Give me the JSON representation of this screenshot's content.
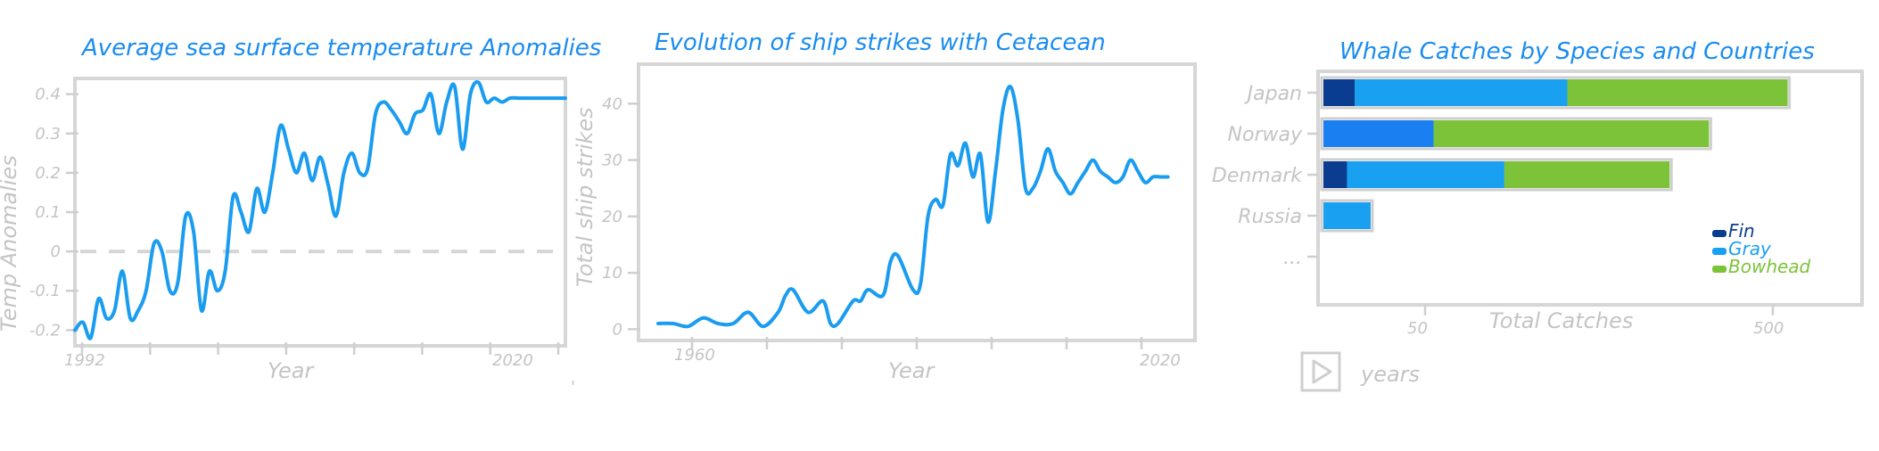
{
  "colors": {
    "title": "#1a8cf0",
    "line": "#1a9cf0",
    "axis": "#c4c4c4",
    "frame": "#d6d6d6",
    "fin": "#0a3d8f",
    "gray": "#1aa0f0",
    "gray_norway": "#1a7ff0",
    "bowhead": "#7dc33a"
  },
  "chart_data": [
    {
      "type": "line",
      "title": "Average sea surface temperature Anomalies",
      "xlabel": "Year",
      "ylabel": "Temp Anomalies",
      "x_tick_labels": [
        "1992",
        "2020"
      ],
      "y_ticks": [
        -0.2,
        -0.1,
        0,
        0.1,
        0.2,
        0.3,
        0.4
      ],
      "y_tick_labels": [
        "-0.2",
        "-0.1",
        "0",
        "0.1",
        "0.2",
        "0.3",
        "0.4"
      ],
      "xlim": [
        1992,
        2023
      ],
      "ylim": [
        -0.24,
        0.44
      ],
      "baseline": 0,
      "series": [
        {
          "x": [
            1992.0,
            1992.5,
            1993.0,
            1993.5,
            1994.0,
            1994.5,
            1995.0,
            1995.5,
            1996.0,
            1996.5,
            1997.0,
            1997.5,
            1998.0,
            1998.5,
            1999.0,
            1999.5,
            2000.0,
            2000.5,
            2001.0,
            2001.5,
            2002.0,
            2002.5,
            2003.0,
            2003.5,
            2004.0,
            2004.5,
            2005.0,
            2005.5,
            2006.0,
            2006.5,
            2007.0,
            2007.5,
            2008.0,
            2008.5,
            2009.0,
            2009.5,
            2010.0,
            2010.5,
            2011.0,
            2011.5,
            2012.0,
            2012.5,
            2013.0,
            2013.5,
            2014.0,
            2014.5,
            2015.0,
            2015.5,
            2016.0,
            2016.5,
            2017.0,
            2017.5,
            2018.0,
            2018.5,
            2019.0,
            2019.5,
            2020.0,
            2020.5,
            2021.0,
            2021.5,
            2022.0,
            2022.5,
            2023.0
          ],
          "y": [
            -0.2,
            -0.18,
            -0.22,
            -0.12,
            -0.17,
            -0.15,
            -0.05,
            -0.17,
            -0.15,
            -0.1,
            0.02,
            0.0,
            -0.1,
            -0.08,
            0.09,
            0.05,
            -0.15,
            -0.05,
            -0.1,
            -0.05,
            0.14,
            0.1,
            0.05,
            0.16,
            0.1,
            0.2,
            0.32,
            0.26,
            0.2,
            0.25,
            0.18,
            0.24,
            0.17,
            0.09,
            0.2,
            0.25,
            0.2,
            0.21,
            0.35,
            0.38,
            0.36,
            0.33,
            0.3,
            0.35,
            0.36,
            0.4,
            0.3,
            0.38,
            0.42,
            0.26,
            0.4,
            0.43,
            0.38,
            0.39,
            0.38,
            0.39,
            0.39,
            0.39,
            0.39,
            0.39,
            0.39,
            0.39,
            0.39
          ]
        }
      ],
      "footnote": "'"
    },
    {
      "type": "line",
      "title": "Evolution of ship strikes with Cetacean",
      "xlabel": "Year",
      "ylabel": "Total ship strikes",
      "x_tick_labels": [
        "1960",
        "2020"
      ],
      "y_ticks": [
        0,
        10,
        20,
        30,
        40
      ],
      "y_tick_labels": [
        "0",
        "10",
        "20",
        "30",
        "40"
      ],
      "xlim": [
        1952,
        2021
      ],
      "ylim": [
        -2,
        47
      ],
      "series": [
        {
          "x": [
            1952,
            1954,
            1956,
            1958,
            1960,
            1962,
            1964,
            1966,
            1968,
            1969,
            1970,
            1972,
            1974,
            1975,
            1976,
            1978,
            1979,
            1980,
            1982,
            1983,
            1984,
            1986,
            1987,
            1988,
            1989,
            1990,
            1991,
            1992,
            1993,
            1994,
            1995,
            1996,
            1997,
            1998,
            1999,
            2000,
            2001,
            2002,
            2003,
            2004,
            2005,
            2006,
            2007,
            2008,
            2009,
            2010,
            2011,
            2012,
            2013,
            2014,
            2015,
            2016,
            2017,
            2018,
            2019,
            2020
          ],
          "y": [
            1,
            1,
            0.5,
            2,
            1,
            1,
            3,
            0.5,
            3,
            6,
            7,
            3,
            5,
            1,
            1,
            5,
            5,
            7,
            6,
            12,
            13,
            7,
            8,
            20,
            23,
            22,
            31,
            29,
            33,
            27,
            31,
            19,
            28,
            39,
            43,
            37,
            25,
            25,
            28,
            32,
            28,
            26,
            24,
            26,
            28,
            30,
            28,
            27,
            26,
            27,
            30,
            28,
            26,
            27,
            27,
            27
          ]
        }
      ]
    },
    {
      "type": "bar",
      "orientation": "horizontal",
      "stacked": true,
      "title": "Whale Catches by Species and Countries",
      "xlabel": "Total Catches",
      "x_tick_labels": [
        "50",
        "500"
      ],
      "categories": [
        "Japan",
        "Norway",
        "Denmark",
        "Russia",
        "..."
      ],
      "series": [
        {
          "name": "Fin",
          "values": [
            40,
            0,
            30,
            0,
            0
          ]
        },
        {
          "name": "Gray",
          "values": [
            270,
            140,
            200,
            60,
            0
          ]
        },
        {
          "name": "Bowhead",
          "values": [
            280,
            350,
            210,
            0,
            0
          ]
        }
      ],
      "xlim": [
        0,
        680
      ],
      "legend": [
        "Fin",
        "Gray",
        "Bowhead"
      ],
      "legend_position": "bottom-right"
    }
  ],
  "controls": {
    "play_label": "years"
  }
}
